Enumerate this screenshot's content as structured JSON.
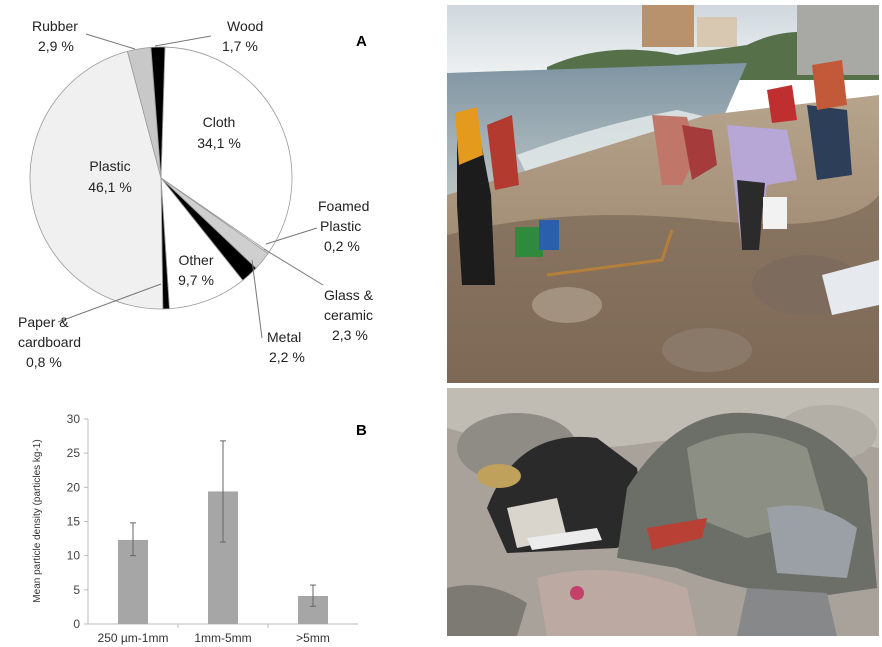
{
  "chart_data": [
    {
      "type": "pie",
      "panel_label": "A",
      "slices": [
        {
          "name": "Cloth",
          "value": 34.1,
          "label": "34,1 %",
          "color": "#ffffff"
        },
        {
          "name": "Foamed Plastic",
          "value": 0.2,
          "label": "0,2 %",
          "color": "#ffffff"
        },
        {
          "name": "Glass & ceramic",
          "value": 2.3,
          "label": "2,3 %",
          "color": "#cfcfcf"
        },
        {
          "name": "Metal",
          "value": 2.2,
          "label": "2,2 %",
          "color": "#000000"
        },
        {
          "name": "Other",
          "value": 9.7,
          "label": "9,7 %",
          "color": "#ffffff"
        },
        {
          "name": "Paper & cardboard",
          "value": 0.8,
          "label": "0,8 %",
          "color": "#000000"
        },
        {
          "name": "Plastic",
          "value": 46.1,
          "label": "46,1 %",
          "color": "#f0f0f0"
        },
        {
          "name": "Rubber",
          "value": 2.9,
          "label": "2,9 %",
          "color": "#c8c8c8"
        },
        {
          "name": "Wood",
          "value": 1.7,
          "label": "1,7 %",
          "color": "#000000"
        }
      ],
      "label_lines": {
        "cloth": [
          "Cloth",
          "34,1 %"
        ],
        "foamed": [
          "Foamed",
          "Plastic",
          "0,2 %"
        ],
        "glass": [
          "Glass &",
          "ceramic",
          "2,3 %"
        ],
        "metal": [
          "Metal",
          "2,2 %"
        ],
        "other": [
          "Other",
          "9,7 %"
        ],
        "paper": [
          "Paper &",
          "cardboard",
          "0,8 %"
        ],
        "plastic": [
          "Plastic",
          "46,1 %"
        ],
        "rubber": [
          "Rubber",
          "2,9 %"
        ],
        "wood": [
          "Wood",
          "1,7 %"
        ]
      }
    },
    {
      "type": "bar",
      "panel_label": "B",
      "categories": [
        "250 µm-1mm",
        "1mm-5mm",
        ">5mm"
      ],
      "values": [
        12.3,
        19.4,
        4.1
      ],
      "error_low": [
        10.0,
        12.0,
        2.6
      ],
      "error_high": [
        14.8,
        26.8,
        5.7
      ],
      "ylabel": "Mean particle density (particles kg-1)",
      "ylim": [
        0,
        30
      ],
      "yticks": [
        "0",
        "5",
        "10",
        "15",
        "20",
        "25",
        "30"
      ],
      "bar_color": "#a6a6a6",
      "grid": false
    }
  ],
  "photos": {
    "top": "beach-cleanup-photo",
    "bottom": "clothing-debris-photo"
  }
}
